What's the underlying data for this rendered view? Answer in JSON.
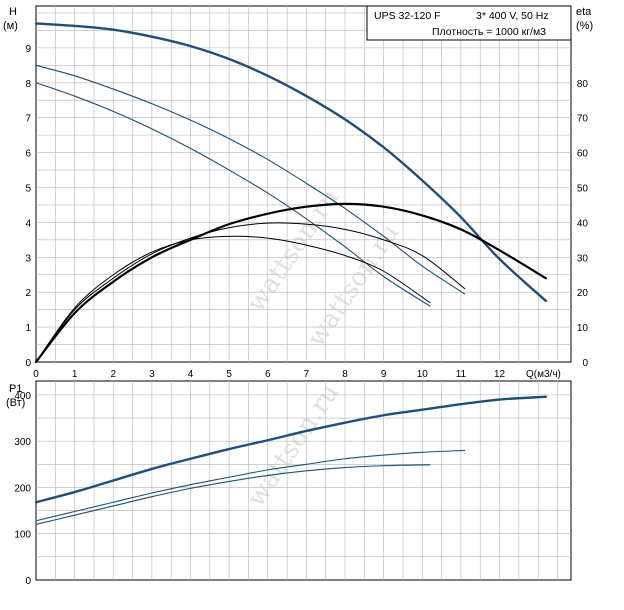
{
  "chart_data": [
    {
      "id": "head",
      "type": "line",
      "title": "",
      "model_label": "UPS 32-120 F",
      "power_label": "3* 400 V, 50 Hz",
      "density_label": "Плотность = 1000 кг/м3",
      "y_label": "H",
      "y_unit": "(м)",
      "y2_label": "eta",
      "y2_unit": "(%)",
      "x_label": "Q(м3/ч)",
      "xlim": [
        0,
        13.85
      ],
      "ylim": [
        0,
        10.2
      ],
      "y2lim": [
        0,
        102
      ],
      "x_ticks": [
        "0",
        "1",
        "2",
        "3",
        "4",
        "5",
        "6",
        "7",
        "8",
        "9",
        "10",
        "11",
        "12"
      ],
      "y_ticks": [
        "0",
        "1",
        "2",
        "3",
        "4",
        "5",
        "6",
        "7",
        "8",
        "9"
      ],
      "y2_ticks": [
        "0",
        "10",
        "20",
        "30",
        "40",
        "50",
        "60",
        "70",
        "80"
      ],
      "grid": true,
      "watermark": "wattson.ru",
      "series": [
        {
          "axis": "H",
          "color": "#1f4e7a",
          "width": 2.4,
          "x": [
            0,
            1,
            2,
            3,
            4,
            5,
            6,
            7,
            8,
            9,
            10,
            11,
            12,
            13.2
          ],
          "y": [
            9.7,
            9.63,
            9.52,
            9.32,
            9.05,
            8.68,
            8.2,
            7.62,
            6.95,
            6.15,
            5.2,
            4.15,
            2.95,
            1.75
          ]
        },
        {
          "axis": "H",
          "color": "#1f4e7a",
          "width": 1.1,
          "x": [
            0,
            1,
            2,
            3,
            4,
            5,
            6,
            7,
            8,
            9,
            10,
            11.1
          ],
          "y": [
            8.5,
            8.2,
            7.82,
            7.4,
            6.93,
            6.4,
            5.8,
            5.12,
            4.4,
            3.6,
            2.75,
            1.95
          ]
        },
        {
          "axis": "H",
          "color": "#1f4e7a",
          "width": 1.1,
          "x": [
            0,
            1,
            2,
            3,
            4,
            5,
            6,
            7,
            8,
            9,
            10.2
          ],
          "y": [
            8.0,
            7.62,
            7.18,
            6.68,
            6.12,
            5.5,
            4.84,
            4.1,
            3.3,
            2.45,
            1.6
          ]
        },
        {
          "axis": "eta",
          "color": "#000000",
          "width": 2.2,
          "x": [
            0,
            1,
            2,
            3,
            4,
            5,
            6,
            7,
            8,
            9,
            10,
            11,
            12,
            13.2
          ],
          "y": [
            0,
            14,
            23,
            30,
            35,
            39.5,
            42.5,
            44.5,
            45.3,
            44.5,
            42,
            38,
            32,
            24
          ]
        },
        {
          "axis": "eta",
          "color": "#000000",
          "width": 1.0,
          "x": [
            0,
            1,
            2,
            3,
            4,
            5,
            6,
            7,
            8,
            9,
            10,
            11.1
          ],
          "y": [
            0,
            15,
            24,
            31,
            35.5,
            38.5,
            39.8,
            39.5,
            38,
            35,
            30.5,
            21
          ]
        },
        {
          "axis": "eta",
          "color": "#000000",
          "width": 1.0,
          "x": [
            0,
            1,
            2,
            3,
            4,
            5,
            6,
            7,
            8,
            9,
            10.2
          ],
          "y": [
            0,
            15.5,
            25,
            31.5,
            35,
            36,
            35.5,
            33.5,
            30.5,
            26,
            17
          ]
        }
      ]
    },
    {
      "id": "power",
      "type": "line",
      "title": "",
      "y_label": "P1",
      "y_unit": "(Вт)",
      "xlim": [
        0,
        13.85
      ],
      "ylim": [
        0,
        430
      ],
      "y_ticks": [
        "0",
        "100",
        "200",
        "300",
        "400"
      ],
      "grid": true,
      "series": [
        {
          "color": "#1f4e7a",
          "width": 2.4,
          "x": [
            0,
            1,
            2,
            3,
            4,
            5,
            6,
            7,
            8,
            9,
            10,
            11,
            12,
            13.2
          ],
          "y": [
            168,
            190,
            215,
            240,
            262,
            283,
            302,
            322,
            340,
            356,
            368,
            380,
            390,
            396
          ]
        },
        {
          "color": "#1f4e7a",
          "width": 1.1,
          "x": [
            0,
            1,
            2,
            3,
            4,
            5,
            6,
            7,
            8,
            9,
            10,
            11.1
          ],
          "y": [
            128,
            148,
            168,
            188,
            206,
            222,
            238,
            250,
            262,
            270,
            276,
            280
          ]
        },
        {
          "color": "#1f4e7a",
          "width": 1.1,
          "x": [
            0,
            1,
            2,
            3,
            4,
            5,
            6,
            7,
            8,
            9,
            10.2
          ],
          "y": [
            120,
            140,
            160,
            180,
            198,
            213,
            226,
            236,
            243,
            247,
            249
          ]
        }
      ]
    }
  ]
}
